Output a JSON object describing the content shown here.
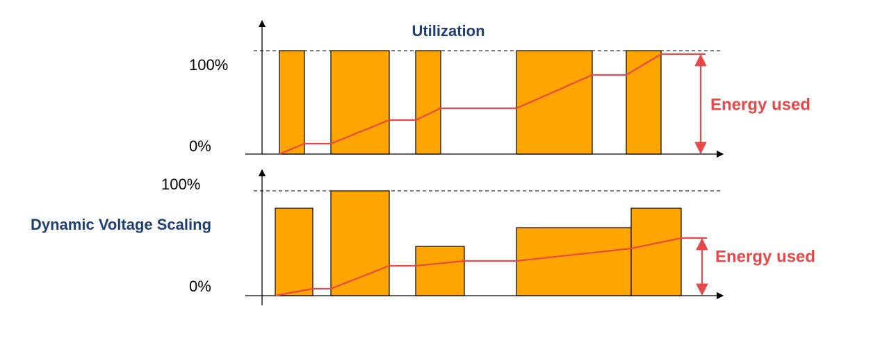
{
  "top_panel": {
    "title": "Utilization",
    "y_top_label": "100%",
    "y_bottom_label": "0%",
    "energy_label": "Energy used"
  },
  "bottom_panel": {
    "title": "Dynamic Voltage Scaling",
    "y_top_label": "100%",
    "y_bottom_label": "0%",
    "energy_label": "Energy used"
  }
}
